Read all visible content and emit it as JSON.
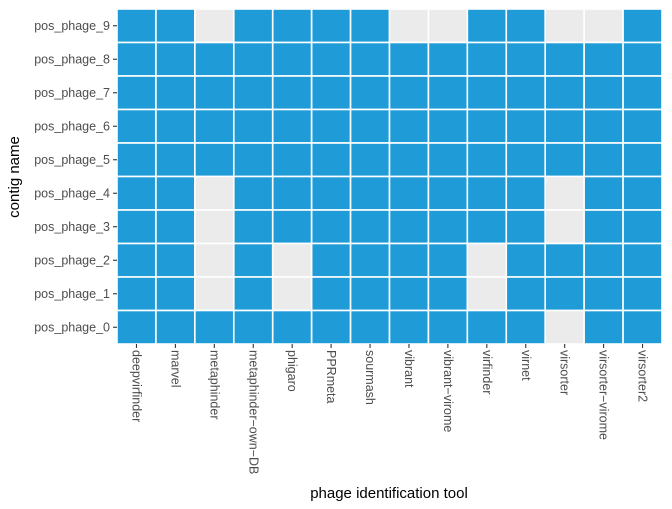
{
  "chart_data": {
    "type": "heatmap",
    "xlabel": "phage identification tool",
    "ylabel": "contig name",
    "x_categories": [
      "deepvirfinder",
      "marvel",
      "metaphinder",
      "metaphinder−own−DB",
      "phigaro",
      "PPRmeta",
      "sourmash",
      "vibrant",
      "vibrant−virome",
      "virfinder",
      "virnet",
      "virsorter",
      "virsorter−virome",
      "virsorter2"
    ],
    "y_categories": [
      "pos_phage_9",
      "pos_phage_8",
      "pos_phage_7",
      "pos_phage_6",
      "pos_phage_5",
      "pos_phage_4",
      "pos_phage_3",
      "pos_phage_2",
      "pos_phage_1",
      "pos_phage_0"
    ],
    "values": [
      [
        1,
        1,
        0,
        1,
        1,
        1,
        1,
        0,
        0,
        1,
        1,
        0,
        0,
        1
      ],
      [
        1,
        1,
        1,
        1,
        1,
        1,
        1,
        1,
        1,
        1,
        1,
        1,
        1,
        1
      ],
      [
        1,
        1,
        1,
        1,
        1,
        1,
        1,
        1,
        1,
        1,
        1,
        1,
        1,
        1
      ],
      [
        1,
        1,
        1,
        1,
        1,
        1,
        1,
        1,
        1,
        1,
        1,
        1,
        1,
        1
      ],
      [
        1,
        1,
        1,
        1,
        1,
        1,
        1,
        1,
        1,
        1,
        1,
        1,
        1,
        1
      ],
      [
        1,
        1,
        0,
        1,
        1,
        1,
        1,
        1,
        1,
        1,
        1,
        0,
        1,
        1
      ],
      [
        1,
        1,
        0,
        1,
        1,
        1,
        1,
        1,
        1,
        1,
        1,
        0,
        1,
        1
      ],
      [
        1,
        1,
        0,
        1,
        0,
        1,
        1,
        1,
        1,
        0,
        1,
        1,
        1,
        1
      ],
      [
        1,
        1,
        0,
        1,
        0,
        1,
        1,
        1,
        1,
        0,
        1,
        1,
        1,
        1
      ],
      [
        1,
        1,
        1,
        1,
        1,
        1,
        1,
        1,
        1,
        1,
        1,
        0,
        1,
        1
      ]
    ],
    "legend": "none",
    "grid": false,
    "colors": {
      "detected": "#1f9bd7",
      "not_detected": "#ebebeb",
      "cell_border": "#ffffff"
    }
  }
}
